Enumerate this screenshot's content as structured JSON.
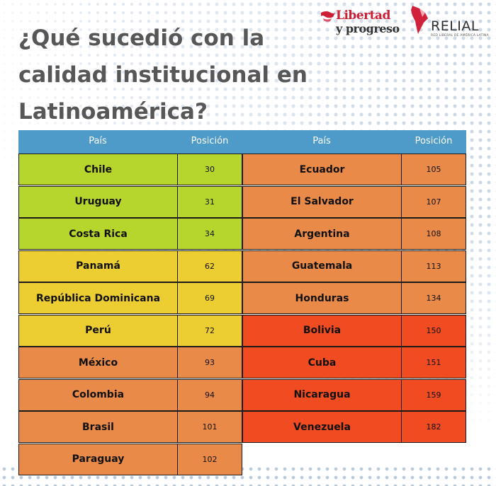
{
  "title": "¿Qué sucedió con la calidad institucional en Latinoamérica?",
  "logos": {
    "libertad_line1": "Libertad",
    "libertad_line2": "y progreso",
    "relial_name": "RELIAL",
    "relial_tagline": "RED LIBERAL DE AMÉRICA LATINA"
  },
  "colors": {
    "header": "#4e9ac8",
    "green": "#b6d62e",
    "yellow": "#eccd32",
    "orange": "#ea8a48",
    "red": "#f04b21"
  },
  "table": {
    "headers": {
      "country": "País",
      "position": "Posición"
    },
    "left": [
      {
        "country": "Chile",
        "position": "30",
        "level": "green"
      },
      {
        "country": "Uruguay",
        "position": "31",
        "level": "green"
      },
      {
        "country": "Costa Rica",
        "position": "34",
        "level": "green"
      },
      {
        "country": "Panamá",
        "position": "62",
        "level": "yellow"
      },
      {
        "country": "República Dominicana",
        "position": "69",
        "level": "yellow"
      },
      {
        "country": "Perú",
        "position": "72",
        "level": "yellow"
      },
      {
        "country": "México",
        "position": "93",
        "level": "orange"
      },
      {
        "country": "Colombia",
        "position": "94",
        "level": "orange"
      },
      {
        "country": "Brasil",
        "position": "101",
        "level": "orange"
      },
      {
        "country": "Paraguay",
        "position": "102",
        "level": "orange"
      }
    ],
    "right": [
      {
        "country": "Ecuador",
        "position": "105",
        "level": "orange"
      },
      {
        "country": "El Salvador",
        "position": "107",
        "level": "orange"
      },
      {
        "country": "Argentina",
        "position": "108",
        "level": "orange"
      },
      {
        "country": "Guatemala",
        "position": "113",
        "level": "orange"
      },
      {
        "country": "Honduras",
        "position": "134",
        "level": "orange"
      },
      {
        "country": "Bolivia",
        "position": "150",
        "level": "red"
      },
      {
        "country": "Cuba",
        "position": "151",
        "level": "red"
      },
      {
        "country": "Nicaragua",
        "position": "159",
        "level": "red"
      },
      {
        "country": "Venezuela",
        "position": "182",
        "level": "red"
      }
    ]
  }
}
